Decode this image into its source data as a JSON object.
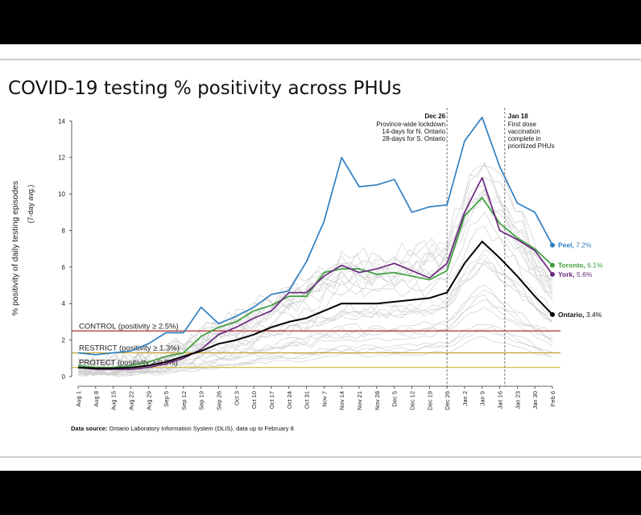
{
  "title": "COVID-19 testing % positivity across PHUs",
  "footnote": {
    "label": "Data source:",
    "text": "Ontario Laboratory Information System (OLIS), data up to February 8"
  },
  "chart_data": {
    "type": "line",
    "title": "COVID-19 testing % positivity across PHUs",
    "ylabel": "% positivity of daily testing episodes",
    "ylabel2": "(7-day avg.)",
    "xlabel": "",
    "ylim": [
      0,
      14.5
    ],
    "yticks": [
      0,
      2,
      4,
      6,
      8,
      10,
      12,
      14
    ],
    "xticks": [
      "Aug 1",
      "Aug 8",
      "Aug 15",
      "Aug 22",
      "Aug 29",
      "Sep 5",
      "Sep 12",
      "Sep 19",
      "Sep 26",
      "Oct 3",
      "Oct 10",
      "Oct 17",
      "Oct 24",
      "Oct 31",
      "Nov 7",
      "Nov 14",
      "Nov 21",
      "Nov 28",
      "Dec 5",
      "Dec 12",
      "Dec 19",
      "Dec 26",
      "Jan 2",
      "Jan 9",
      "Jan 16",
      "Jan 23",
      "Jan 30",
      "Feb 6"
    ],
    "grid": false,
    "thresholds": [
      {
        "label": "CONTROL (positivity ≥ 2.5%)",
        "value": 2.5,
        "color": "#b22b2b"
      },
      {
        "label": "RESTRICT (positivity ≥ 1.3%)",
        "value": 1.3,
        "color": "#c8a030"
      },
      {
        "label": "PROTECT (positivity ≥ 0.5%)",
        "value": 0.5,
        "color": "#d4c24a"
      }
    ],
    "annotations": [
      {
        "date": "Dec 26",
        "title": "Dec 26",
        "lines": [
          "Province-wide lockdown",
          "14-days for N. Ontario",
          "28-days for S. Ontario"
        ],
        "align": "right"
      },
      {
        "date": "Jan 18",
        "title": "Jan 18",
        "lines": [
          "First dose",
          "vaccination",
          "complete in",
          "prioritized PHUs"
        ],
        "align": "left"
      }
    ],
    "series": [
      {
        "name": "Peel",
        "end_label": "7.2%",
        "color": "#2f7fc1",
        "x": [
          0,
          7,
          14,
          21,
          28,
          35,
          42,
          49,
          56,
          63,
          70,
          77,
          84,
          91,
          98,
          105,
          112,
          119,
          126,
          133,
          140,
          147,
          154,
          161,
          168,
          175,
          182,
          189
        ],
        "y": [
          1.3,
          1.2,
          1.3,
          1.4,
          1.8,
          2.4,
          2.4,
          3.8,
          2.9,
          3.3,
          3.8,
          4.5,
          4.7,
          6.3,
          8.5,
          12.0,
          10.4,
          10.5,
          10.8,
          9.0,
          9.3,
          9.4,
          12.9,
          14.2,
          11.5,
          9.5,
          9.0,
          7.2
        ]
      },
      {
        "name": "Toronto",
        "end_label": "6.1%",
        "color": "#3c9e3c",
        "x": [
          0,
          7,
          14,
          21,
          28,
          35,
          42,
          49,
          56,
          63,
          70,
          77,
          84,
          91,
          98,
          105,
          112,
          119,
          126,
          133,
          140,
          147,
          154,
          161,
          168,
          175,
          182,
          189
        ],
        "y": [
          0.6,
          0.5,
          0.5,
          0.6,
          0.8,
          1.1,
          1.3,
          2.2,
          2.7,
          3.0,
          3.6,
          3.9,
          4.4,
          4.4,
          5.7,
          5.9,
          5.9,
          5.6,
          5.7,
          5.5,
          5.3,
          5.8,
          8.8,
          9.8,
          8.4,
          7.6,
          7.0,
          6.1
        ]
      },
      {
        "name": "York",
        "end_label": "5.6%",
        "color": "#6b2a7f",
        "x": [
          0,
          7,
          14,
          21,
          28,
          35,
          42,
          49,
          56,
          63,
          70,
          77,
          84,
          91,
          98,
          105,
          112,
          119,
          126,
          133,
          140,
          147,
          154,
          161,
          168,
          175,
          182,
          189
        ],
        "y": [
          0.5,
          0.4,
          0.4,
          0.4,
          0.5,
          0.7,
          1.0,
          1.5,
          2.3,
          2.7,
          3.2,
          3.6,
          4.6,
          4.6,
          5.5,
          6.1,
          5.7,
          5.9,
          6.2,
          5.8,
          5.4,
          6.2,
          9.0,
          10.9,
          8.0,
          7.5,
          6.9,
          5.6
        ]
      },
      {
        "name": "Ontario",
        "end_label": "3.4%",
        "color": "#000000",
        "x": [
          0,
          7,
          14,
          21,
          28,
          35,
          42,
          49,
          56,
          63,
          70,
          77,
          84,
          91,
          98,
          105,
          112,
          119,
          126,
          133,
          140,
          147,
          154,
          161,
          168,
          175,
          182,
          189
        ],
        "y": [
          0.5,
          0.45,
          0.45,
          0.5,
          0.6,
          0.8,
          1.1,
          1.4,
          1.8,
          2.0,
          2.3,
          2.7,
          3.0,
          3.2,
          3.6,
          4.0,
          4.0,
          4.0,
          4.1,
          4.2,
          4.3,
          4.6,
          6.2,
          7.4,
          6.5,
          5.5,
          4.4,
          3.4
        ]
      }
    ]
  }
}
